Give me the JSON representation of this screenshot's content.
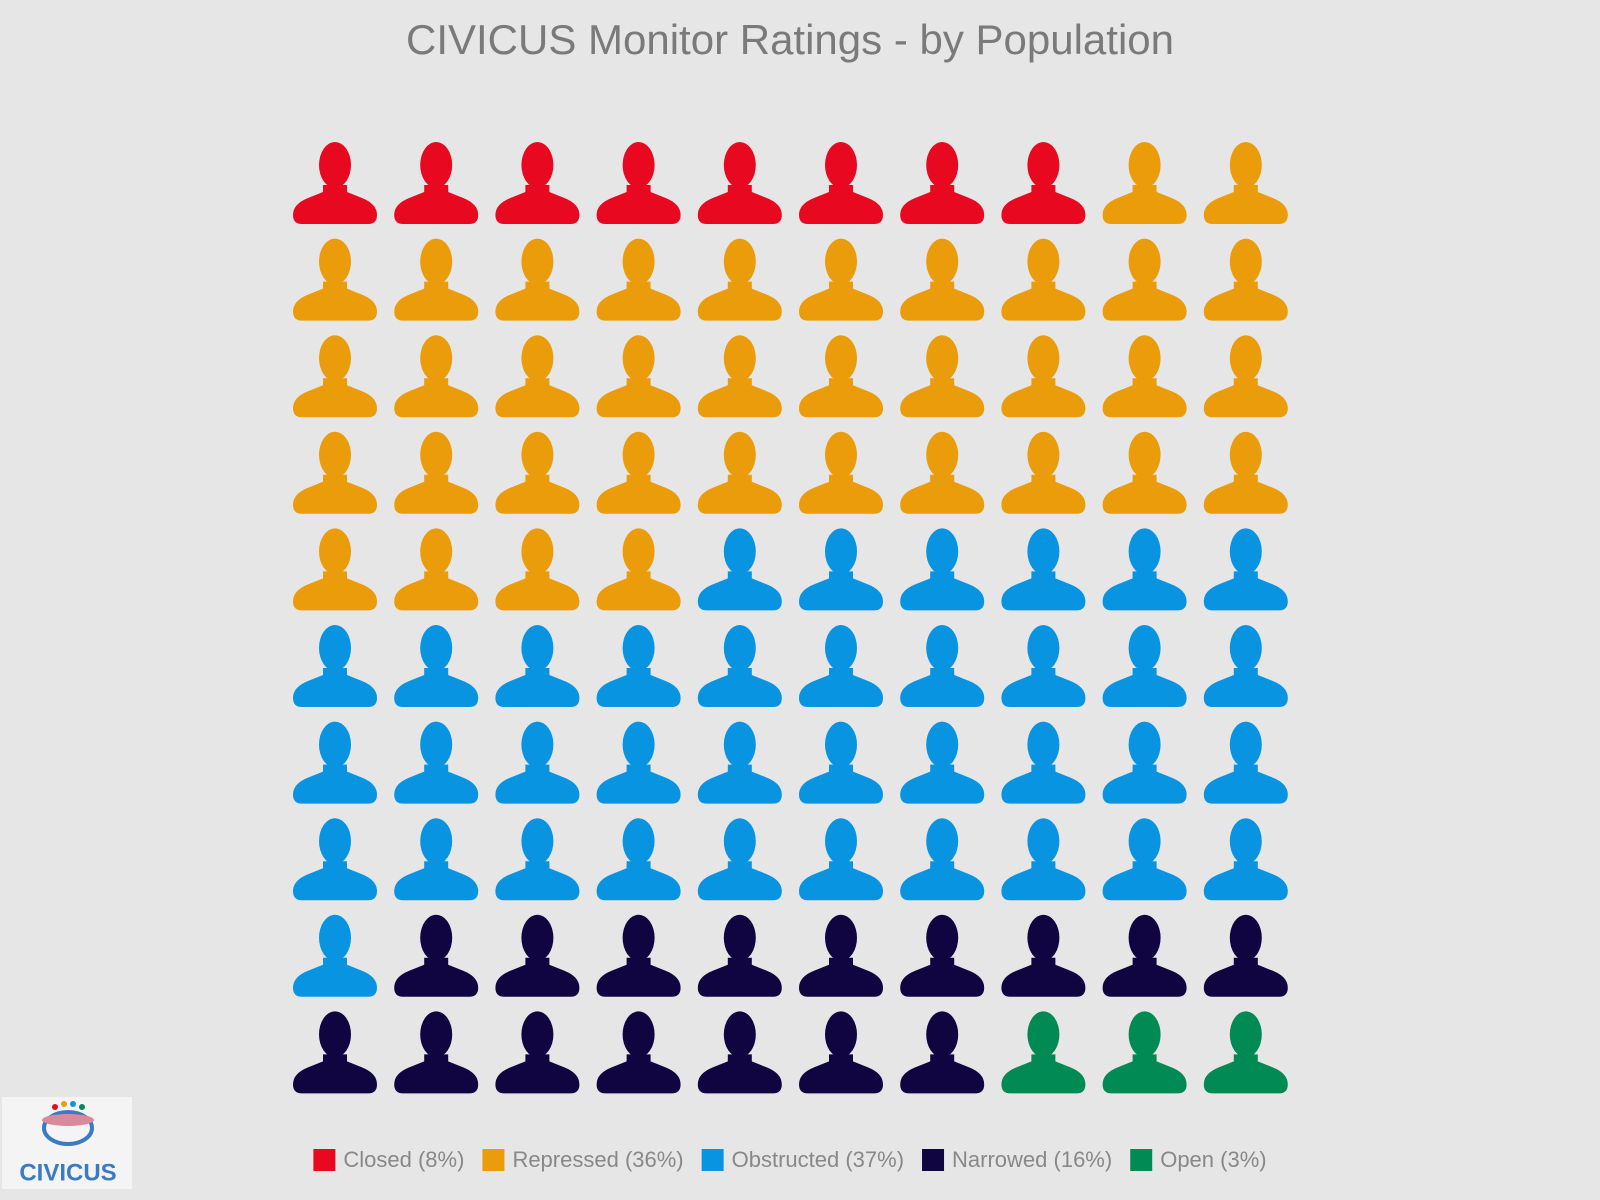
{
  "chart_data": {
    "type": "waffle",
    "title": "CIVICUS Monitor Ratings - by Population",
    "categories": [
      "Closed (8%)",
      "Repressed (36%)",
      "Obstructed (37%)",
      "Narrowed (16%)",
      "Open (3%)"
    ],
    "values": [
      8,
      36,
      37,
      16,
      3
    ],
    "colors": [
      "#e8081f",
      "#eb9c0b",
      "#0894e1",
      "#100540",
      "#028a55"
    ],
    "columns": 10
  },
  "logo": "CIVICUS"
}
